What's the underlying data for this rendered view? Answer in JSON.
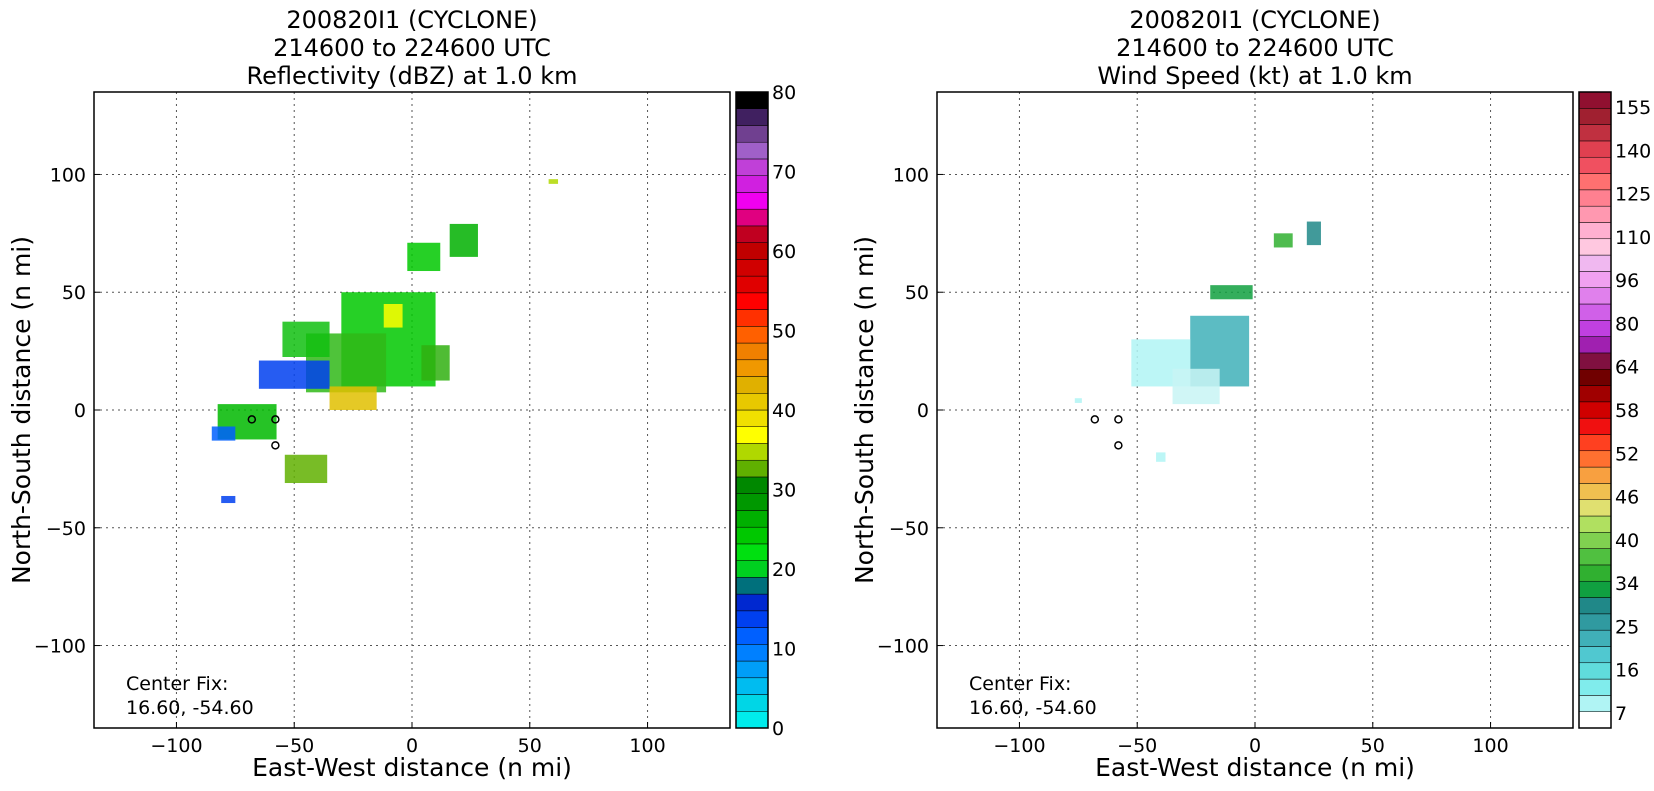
{
  "chart_data": [
    {
      "type": "heatmap",
      "title": [
        "200820I1 (CYCLONE)",
        "214600 to 224600 UTC",
        "Reflectivity (dBZ) at 1.0 km"
      ],
      "xlabel": "East-West distance (n mi)",
      "ylabel": "North-South distance (n mi)",
      "xlim": [
        -135,
        135
      ],
      "ylim": [
        -135,
        135
      ],
      "xticks": [
        -100,
        -50,
        0,
        50,
        100
      ],
      "yticks": [
        -100,
        -50,
        0,
        50,
        100
      ],
      "xtick_labels": [
        "−100",
        "−50",
        "0",
        "50",
        "100"
      ],
      "ytick_labels": [
        "−100",
        "−50",
        "0",
        "50",
        "100"
      ],
      "grid": true,
      "annotation": [
        "Center Fix:",
        "16.60, -54.60"
      ],
      "colorbar": {
        "min": 0,
        "max": 80,
        "tick_values": [
          0,
          10,
          20,
          30,
          40,
          50,
          60,
          70,
          80
        ],
        "tick_labels": [
          "0",
          "10",
          "20",
          "30",
          "40",
          "50",
          "60",
          "70",
          "80"
        ],
        "colors": [
          "#00ecec",
          "#00d6e6",
          "#00bcf0",
          "#009ef8",
          "#0080ff",
          "#0060ff",
          "#0040f0",
          "#0028d0",
          "#00707c",
          "#00d020",
          "#00e010",
          "#00c800",
          "#00b000",
          "#009800",
          "#008800",
          "#60b000",
          "#b0d800",
          "#ffff00",
          "#f0e000",
          "#e8c800",
          "#e0b000",
          "#f09800",
          "#f08000",
          "#ff6000",
          "#ff3000",
          "#ff0000",
          "#e00000",
          "#d00000",
          "#c00000",
          "#c00020",
          "#e00080",
          "#f000f0",
          "#d020e0",
          "#c040d8",
          "#a060c8",
          "#704090",
          "#402060",
          "#000000"
        ]
      },
      "echo_regions": [
        {
          "x": -10,
          "y": 30,
          "w": 40,
          "h": 40,
          "color": "#00c800"
        },
        {
          "x": -28,
          "y": 20,
          "w": 34,
          "h": 25,
          "color": "#30b818"
        },
        {
          "x": -45,
          "y": 30,
          "w": 20,
          "h": 15,
          "color": "#10c010"
        },
        {
          "x": -50,
          "y": 15,
          "w": 30,
          "h": 12,
          "color": "#0040f0"
        },
        {
          "x": -70,
          "y": -5,
          "w": 25,
          "h": 15,
          "color": "#00b800"
        },
        {
          "x": -80,
          "y": -10,
          "w": 10,
          "h": 6,
          "color": "#0060ff"
        },
        {
          "x": -45,
          "y": -25,
          "w": 18,
          "h": 12,
          "color": "#60b000"
        },
        {
          "x": 5,
          "y": 65,
          "w": 14,
          "h": 12,
          "color": "#00c800"
        },
        {
          "x": 22,
          "y": 72,
          "w": 12,
          "h": 14,
          "color": "#00b000"
        },
        {
          "x": 10,
          "y": 20,
          "w": 12,
          "h": 15,
          "color": "#30b010"
        },
        {
          "x": -25,
          "y": 5,
          "w": 20,
          "h": 10,
          "color": "#e0c000"
        },
        {
          "x": -8,
          "y": 40,
          "w": 8,
          "h": 10,
          "color": "#ffff00"
        },
        {
          "x": -78,
          "y": -38,
          "w": 6,
          "h": 3,
          "color": "#0040f0"
        },
        {
          "x": 60,
          "y": 97,
          "w": 4,
          "h": 2,
          "color": "#b0d800"
        }
      ]
    },
    {
      "type": "heatmap",
      "title": [
        "200820I1 (CYCLONE)",
        "214600 to 224600 UTC",
        "Wind Speed (kt) at 1.0 km"
      ],
      "xlabel": "East-West distance (n mi)",
      "ylabel": "North-South distance (n mi)",
      "xlim": [
        -135,
        135
      ],
      "ylim": [
        -135,
        135
      ],
      "xticks": [
        -100,
        -50,
        0,
        50,
        100
      ],
      "yticks": [
        -100,
        -50,
        0,
        50,
        100
      ],
      "xtick_labels": [
        "−100",
        "−50",
        "0",
        "50",
        "100"
      ],
      "ytick_labels": [
        "−100",
        "−50",
        "0",
        "50",
        "100"
      ],
      "grid": true,
      "annotation": [
        "Center Fix:",
        "16.60, -54.60"
      ],
      "colorbar": {
        "ticks_top_to_bottom": [
          "155",
          "140",
          "125",
          "110",
          "96",
          "80",
          "64",
          "58",
          "52",
          "46",
          "40",
          "34",
          "25",
          "16",
          "7"
        ],
        "colors": [
          "#ffffff",
          "#b0f4f4",
          "#80ecec",
          "#60dcdc",
          "#50c8d0",
          "#40b0b8",
          "#309aa0",
          "#208888",
          "#10a040",
          "#30b030",
          "#50c040",
          "#80d050",
          "#b0e060",
          "#e0e070",
          "#f0c050",
          "#f8a040",
          "#ff7030",
          "#ff4020",
          "#f01010",
          "#d00000",
          "#a00000",
          "#700000",
          "#801040",
          "#a020b0",
          "#c040e0",
          "#d060e8",
          "#e080ec",
          "#f0a0f0",
          "#f0b8f0",
          "#ffc8e0",
          "#ffb0d0",
          "#ff98b0",
          "#ff8090",
          "#ff7070",
          "#f05060",
          "#e04050",
          "#c03040",
          "#a02030",
          "#901030"
        ]
      },
      "wind_regions": [
        {
          "x": -15,
          "y": 25,
          "w": 25,
          "h": 30,
          "color": "#40b0b8"
        },
        {
          "x": -40,
          "y": 20,
          "w": 25,
          "h": 20,
          "color": "#b0f4f4"
        },
        {
          "x": -25,
          "y": 10,
          "w": 20,
          "h": 15,
          "color": "#c8f4f4"
        },
        {
          "x": -10,
          "y": 50,
          "w": 18,
          "h": 6,
          "color": "#10a040"
        },
        {
          "x": 12,
          "y": 72,
          "w": 8,
          "h": 6,
          "color": "#30b030"
        },
        {
          "x": 25,
          "y": 75,
          "w": 6,
          "h": 10,
          "color": "#208888"
        },
        {
          "x": -40,
          "y": -20,
          "w": 4,
          "h": 4,
          "color": "#b0f4f4"
        },
        {
          "x": -75,
          "y": 4,
          "w": 3,
          "h": 2,
          "color": "#b0f4f4"
        }
      ]
    }
  ]
}
